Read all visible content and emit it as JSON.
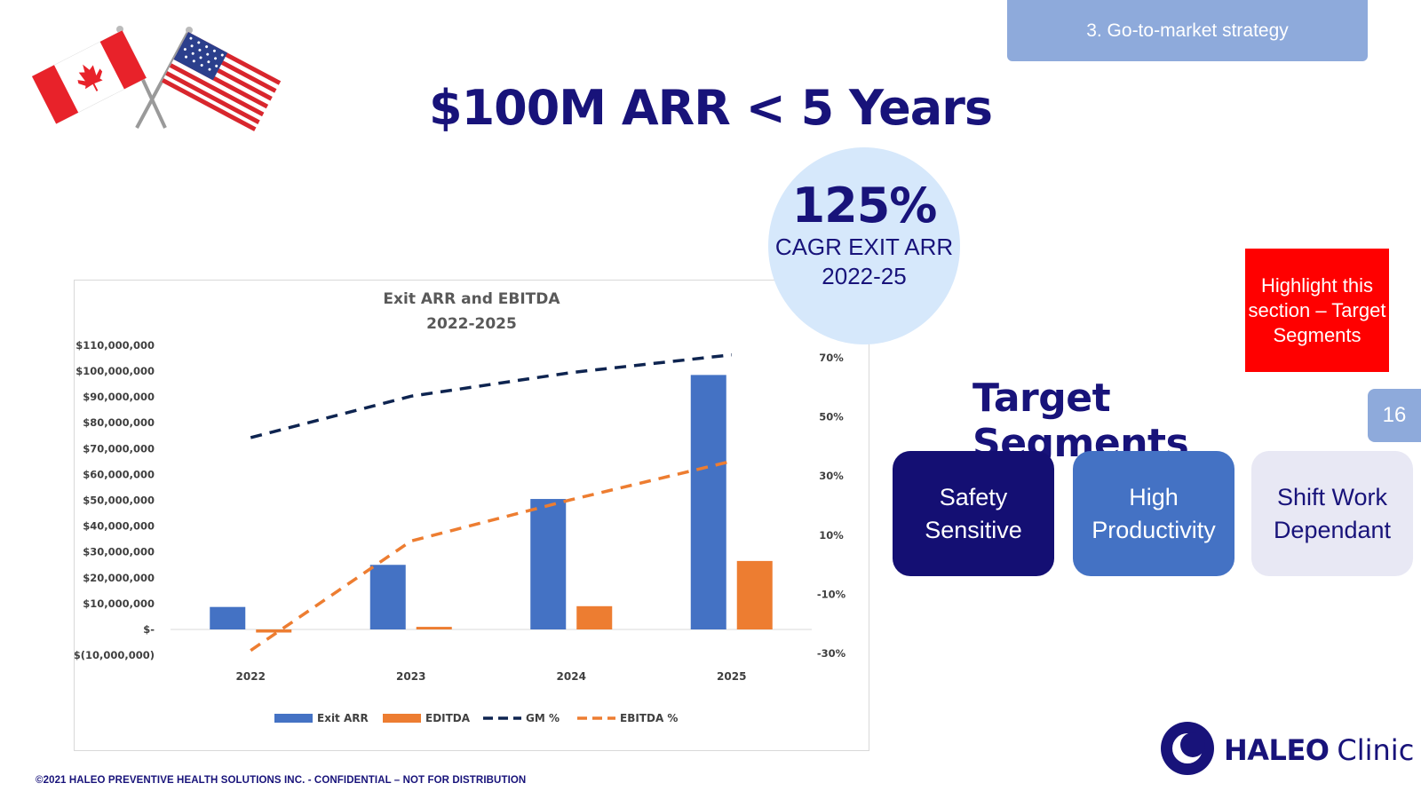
{
  "section_tab": "3. Go-to-market strategy",
  "page_title": "$100M ARR < 5 Years",
  "cagr": {
    "value": "125%",
    "label_line1": "CAGR EXIT ARR",
    "label_line2": "2022-25"
  },
  "highlight_note": "Highlight this section – Target Segments",
  "segments_title": "Target Segments",
  "page_number": "16",
  "segments": [
    {
      "label": "Safety Sensitive"
    },
    {
      "label": "High Productivity"
    },
    {
      "label": "Shift Work Dependant"
    }
  ],
  "logo": {
    "brand": "HALEO",
    "product": "Clinic"
  },
  "footer": "©2021 HALEO PREVENTIVE HEALTH SOLUTIONS INC. -  CONFIDENTIAL – NOT FOR DISTRIBUTION",
  "flags": {
    "left": "canada-flag",
    "right": "usa-flag"
  },
  "colors": {
    "navy": "#18137a",
    "exit_arr": "#4472c4",
    "editda": "#ed7d31",
    "gm_line": "#0e2450",
    "ebitda_line": "#ed7d31",
    "highlight": "#ff0000"
  },
  "chart_data": {
    "type": "bar",
    "title_line1": "Exit ARR and EBITDA",
    "title_line2": "2022-2025",
    "categories": [
      "2022",
      "2023",
      "2024",
      "2025"
    ],
    "y_left": {
      "ticks": [
        -10000000,
        0,
        10000000,
        20000000,
        30000000,
        40000000,
        50000000,
        60000000,
        70000000,
        80000000,
        90000000,
        100000000,
        110000000
      ],
      "tick_labels": [
        "$(10,000,000)",
        "$-",
        "$10,000,000",
        "$20,000,000",
        "$30,000,000",
        "$40,000,000",
        "$50,000,000",
        "$60,000,000",
        "$70,000,000",
        "$80,000,000",
        "$90,000,000",
        "$100,000,000",
        "$110,000,000"
      ]
    },
    "y_right": {
      "ticks": [
        -30,
        -10,
        10,
        30,
        50,
        70
      ],
      "tick_labels": [
        "-30%",
        "-10%",
        "10%",
        "30%",
        "50%",
        "70%"
      ]
    },
    "series": [
      {
        "name": "Exit ARR",
        "type": "bar",
        "axis": "left",
        "values": [
          8700000,
          25000000,
          50500000,
          98500000
        ]
      },
      {
        "name": "EDITDA",
        "type": "bar",
        "axis": "left",
        "values": [
          -1200000,
          1000000,
          9000000,
          26500000
        ]
      },
      {
        "name": "GM %",
        "type": "line",
        "axis": "right",
        "dash": "dashed",
        "values": [
          43,
          57,
          65,
          71
        ]
      },
      {
        "name": "EBITDA %",
        "type": "line",
        "axis": "right",
        "dash": "dashed",
        "values": [
          -29,
          8,
          22,
          35
        ]
      }
    ],
    "legend": "bottom",
    "grid": false
  }
}
